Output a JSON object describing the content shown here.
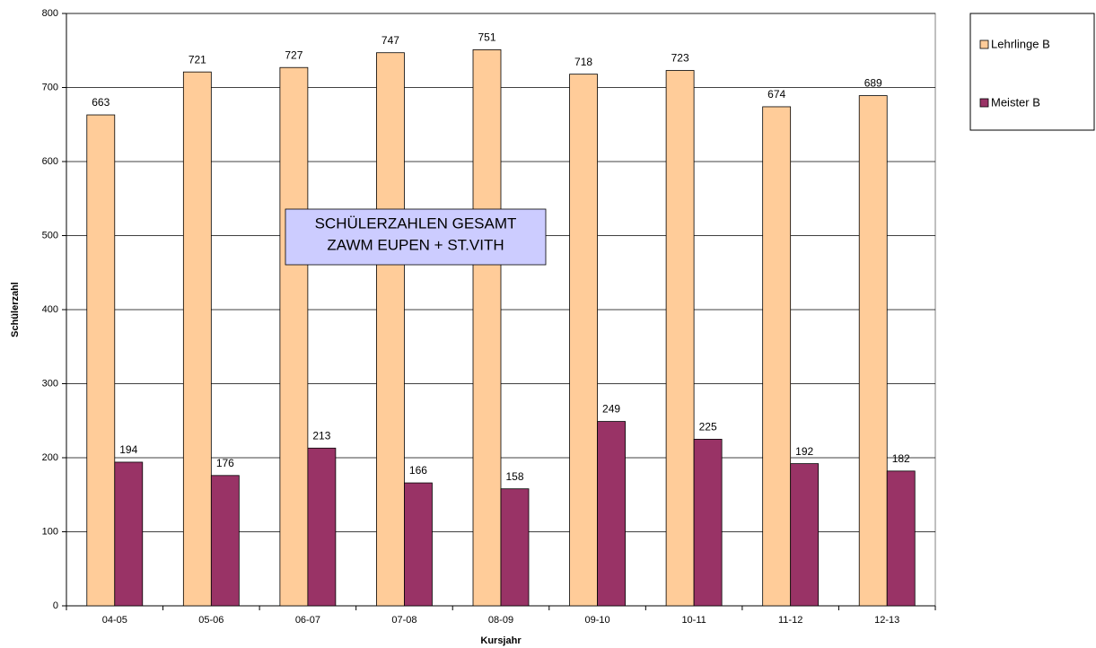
{
  "chart_data": {
    "type": "bar",
    "title": [
      "SCHÜLERZAHLEN GESAMT",
      "ZAWM EUPEN + ST.VITH"
    ],
    "x_label": "Kursjahr",
    "y_label": "Schülerzahl",
    "categories": [
      "04-05",
      "05-06",
      "06-07",
      "07-08",
      "08-09",
      "09-10",
      "10-11",
      "11-12",
      "12-13"
    ],
    "series": [
      {
        "name": "Lehrlinge B",
        "color": "#ffcc99",
        "values": [
          663,
          721,
          727,
          747,
          751,
          718,
          723,
          674,
          689
        ]
      },
      {
        "name": "Meister B",
        "color": "#993366",
        "values": [
          194,
          176,
          213,
          166,
          158,
          249,
          225,
          192,
          182
        ]
      }
    ],
    "ylim": [
      0,
      800
    ],
    "yticks": [
      0,
      100,
      200,
      300,
      400,
      500,
      600,
      700,
      800
    ],
    "grid": true,
    "legend": "right"
  }
}
